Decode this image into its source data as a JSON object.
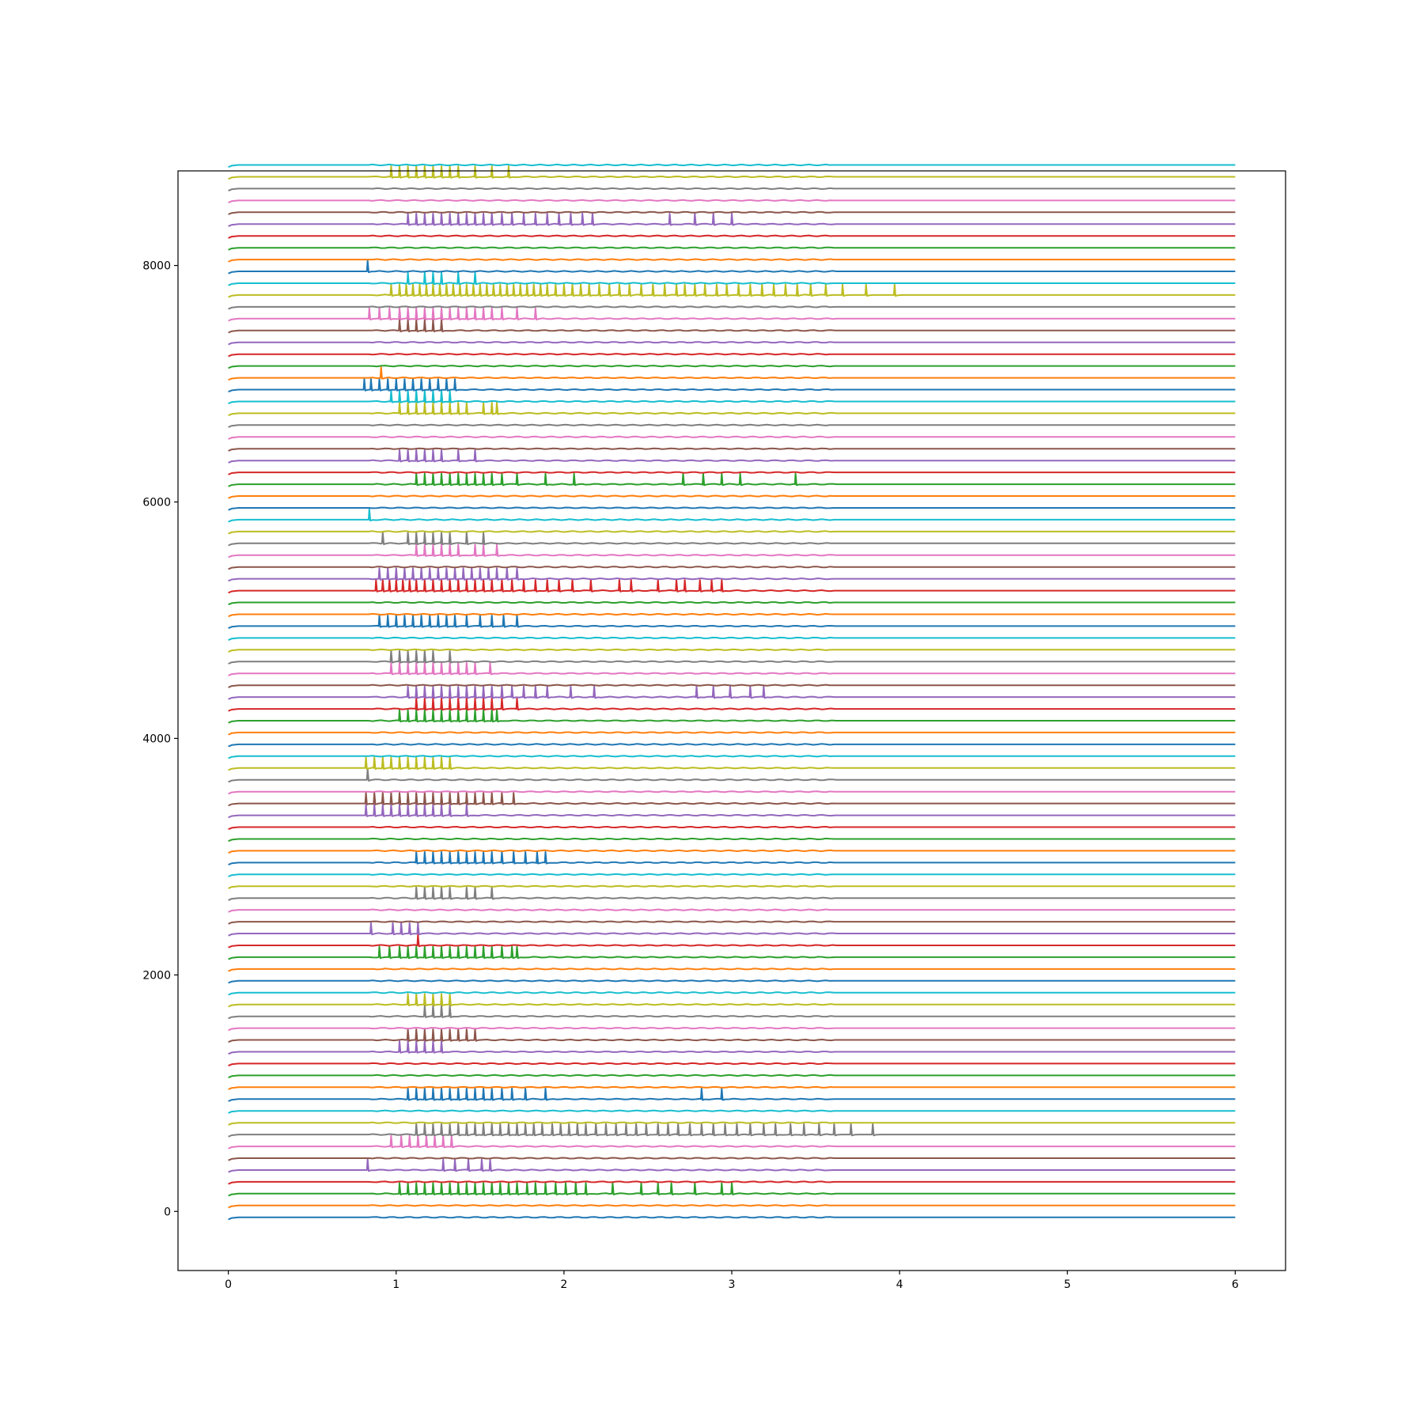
{
  "chart_data": {
    "type": "line",
    "title": "",
    "xlabel": "",
    "ylabel": "",
    "xlim": [
      -0.3,
      6.3
    ],
    "ylim": [
      -500,
      8800
    ],
    "x_ticks": [
      0,
      1,
      2,
      3,
      4,
      5,
      6
    ],
    "y_ticks": [
      0,
      2000,
      4000,
      6000,
      8000
    ],
    "x_tick_labels": [
      "0",
      "1",
      "2",
      "3",
      "4",
      "5",
      "6"
    ],
    "y_tick_labels": [
      "0",
      "2000",
      "4000",
      "6000",
      "8000"
    ],
    "grid": false,
    "legend": "none",
    "x_range": [
      0,
      6
    ],
    "colors": [
      "#1f77b4",
      "#ff7f0e",
      "#2ca02c",
      "#d62728",
      "#9467bd",
      "#8c564b",
      "#e377c2",
      "#7f7f7f",
      "#bcbd22",
      "#17becf"
    ],
    "series": [
      {
        "baseline": -50,
        "spikes": []
      },
      {
        "baseline": 50,
        "spikes": []
      },
      {
        "baseline": 150,
        "spikes": [
          1.02,
          1.07,
          1.12,
          1.17,
          1.22,
          1.27,
          1.32,
          1.37,
          1.42,
          1.47,
          1.52,
          1.57,
          1.62,
          1.67,
          1.72,
          1.78,
          1.83,
          1.89,
          1.95,
          2.01,
          2.07,
          2.13,
          2.29,
          2.46,
          2.56,
          2.64,
          2.78,
          2.94,
          3.0
        ]
      },
      {
        "baseline": 250,
        "spikes": []
      },
      {
        "baseline": 350,
        "spikes": [
          0.83,
          1.28,
          1.35,
          1.43,
          1.51,
          1.56
        ]
      },
      {
        "baseline": 450,
        "spikes": []
      },
      {
        "baseline": 550,
        "spikes": [
          0.97,
          1.03,
          1.08,
          1.13,
          1.18,
          1.23,
          1.28,
          1.33
        ]
      },
      {
        "baseline": 650,
        "spikes": [
          1.12,
          1.17,
          1.22,
          1.27,
          1.32,
          1.37,
          1.42,
          1.47,
          1.52,
          1.57,
          1.62,
          1.67,
          1.72,
          1.77,
          1.82,
          1.87,
          1.93,
          1.98,
          2.03,
          2.08,
          2.13,
          2.19,
          2.25,
          2.31,
          2.37,
          2.43,
          2.49,
          2.56,
          2.62,
          2.68,
          2.75,
          2.82,
          2.89,
          2.96,
          3.03,
          3.11,
          3.19,
          3.26,
          3.35,
          3.43,
          3.52,
          3.61,
          3.71,
          3.84
        ]
      },
      {
        "baseline": 750,
        "spikes": []
      },
      {
        "baseline": 850,
        "spikes": []
      },
      {
        "baseline": 950,
        "spikes": [
          1.07,
          1.12,
          1.17,
          1.22,
          1.27,
          1.32,
          1.37,
          1.42,
          1.47,
          1.52,
          1.57,
          1.63,
          1.69,
          1.77,
          1.89,
          2.82,
          2.94
        ]
      },
      {
        "baseline": 1050,
        "spikes": []
      },
      {
        "baseline": 1150,
        "spikes": []
      },
      {
        "baseline": 1250,
        "spikes": []
      },
      {
        "baseline": 1350,
        "spikes": [
          1.02,
          1.07,
          1.12,
          1.17,
          1.22,
          1.27
        ]
      },
      {
        "baseline": 1450,
        "spikes": [
          1.07,
          1.12,
          1.17,
          1.22,
          1.27,
          1.32,
          1.37,
          1.42,
          1.47
        ]
      },
      {
        "baseline": 1550,
        "spikes": []
      },
      {
        "baseline": 1650,
        "spikes": [
          1.17,
          1.22,
          1.27,
          1.32
        ]
      },
      {
        "baseline": 1750,
        "spikes": [
          1.07,
          1.12,
          1.17,
          1.22,
          1.27,
          1.32
        ]
      },
      {
        "baseline": 1850,
        "spikes": []
      },
      {
        "baseline": 1950,
        "spikes": []
      },
      {
        "baseline": 2050,
        "spikes": []
      },
      {
        "baseline": 2150,
        "spikes": [
          0.9,
          0.96,
          1.02,
          1.07,
          1.12,
          1.17,
          1.22,
          1.27,
          1.32,
          1.37,
          1.42,
          1.47,
          1.52,
          1.57,
          1.63,
          1.69,
          1.72
        ]
      },
      {
        "baseline": 2250,
        "spikes": [
          1.13
        ]
      },
      {
        "baseline": 2350,
        "spikes": [
          0.85,
          0.98,
          1.03,
          1.08,
          1.13
        ]
      },
      {
        "baseline": 2450,
        "spikes": []
      },
      {
        "baseline": 2550,
        "spikes": []
      },
      {
        "baseline": 2650,
        "spikes": [
          1.12,
          1.17,
          1.22,
          1.27,
          1.32,
          1.42,
          1.47,
          1.57
        ]
      },
      {
        "baseline": 2750,
        "spikes": []
      },
      {
        "baseline": 2850,
        "spikes": []
      },
      {
        "baseline": 2950,
        "spikes": [
          1.12,
          1.17,
          1.22,
          1.27,
          1.32,
          1.37,
          1.42,
          1.47,
          1.52,
          1.57,
          1.63,
          1.7,
          1.77,
          1.84,
          1.89
        ]
      },
      {
        "baseline": 3050,
        "spikes": []
      },
      {
        "baseline": 3150,
        "spikes": []
      },
      {
        "baseline": 3250,
        "spikes": []
      },
      {
        "baseline": 3350,
        "spikes": [
          0.82,
          0.87,
          0.92,
          0.97,
          1.02,
          1.07,
          1.12,
          1.17,
          1.22,
          1.27,
          1.32,
          1.42
        ]
      },
      {
        "baseline": 3450,
        "spikes": [
          0.82,
          0.87,
          0.92,
          0.97,
          1.02,
          1.07,
          1.12,
          1.17,
          1.22,
          1.27,
          1.32,
          1.37,
          1.42,
          1.47,
          1.52,
          1.57,
          1.63,
          1.7
        ]
      },
      {
        "baseline": 3550,
        "spikes": []
      },
      {
        "baseline": 3650,
        "spikes": [
          0.83
        ]
      },
      {
        "baseline": 3750,
        "spikes": [
          0.82,
          0.87,
          0.92,
          0.97,
          1.02,
          1.07,
          1.12,
          1.17,
          1.22,
          1.27,
          1.32
        ]
      },
      {
        "baseline": 3850,
        "spikes": []
      },
      {
        "baseline": 3950,
        "spikes": []
      },
      {
        "baseline": 4050,
        "spikes": []
      },
      {
        "baseline": 4150,
        "spikes": [
          1.02,
          1.07,
          1.12,
          1.17,
          1.22,
          1.27,
          1.32,
          1.37,
          1.42,
          1.47,
          1.52,
          1.57,
          1.6
        ]
      },
      {
        "baseline": 4250,
        "spikes": [
          1.12,
          1.17,
          1.22,
          1.27,
          1.32,
          1.37,
          1.42,
          1.47,
          1.52,
          1.57,
          1.63,
          1.72
        ]
      },
      {
        "baseline": 4350,
        "spikes": [
          1.07,
          1.12,
          1.17,
          1.22,
          1.27,
          1.32,
          1.37,
          1.42,
          1.47,
          1.52,
          1.57,
          1.63,
          1.69,
          1.76,
          1.83,
          1.9,
          2.04,
          2.18,
          2.79,
          2.89,
          2.99,
          3.11,
          3.19
        ]
      },
      {
        "baseline": 4450,
        "spikes": []
      },
      {
        "baseline": 4550,
        "spikes": [
          0.97,
          1.02,
          1.07,
          1.12,
          1.17,
          1.22,
          1.27,
          1.32,
          1.37,
          1.42,
          1.47,
          1.56
        ]
      },
      {
        "baseline": 4650,
        "spikes": [
          0.97,
          1.02,
          1.07,
          1.12,
          1.17,
          1.22,
          1.32
        ]
      },
      {
        "baseline": 4750,
        "spikes": []
      },
      {
        "baseline": 4850,
        "spikes": []
      },
      {
        "baseline": 4950,
        "spikes": [
          0.9,
          0.95,
          1.0,
          1.05,
          1.1,
          1.15,
          1.2,
          1.25,
          1.3,
          1.35,
          1.42,
          1.5,
          1.57,
          1.64,
          1.72
        ]
      },
      {
        "baseline": 5050,
        "spikes": []
      },
      {
        "baseline": 5150,
        "spikes": []
      },
      {
        "baseline": 5250,
        "spikes": [
          0.88,
          0.92,
          0.96,
          1.0,
          1.04,
          1.08,
          1.12,
          1.17,
          1.22,
          1.27,
          1.32,
          1.37,
          1.42,
          1.47,
          1.52,
          1.57,
          1.63,
          1.69,
          1.76,
          1.83,
          1.9,
          1.97,
          2.05,
          2.16,
          2.33,
          2.4,
          2.56,
          2.67,
          2.72,
          2.81,
          2.88,
          2.94
        ]
      },
      {
        "baseline": 5350,
        "spikes": [
          0.9,
          0.95,
          1.0,
          1.05,
          1.1,
          1.15,
          1.2,
          1.25,
          1.3,
          1.35,
          1.4,
          1.45,
          1.5,
          1.55,
          1.6,
          1.66,
          1.72
        ]
      },
      {
        "baseline": 5450,
        "spikes": []
      },
      {
        "baseline": 5550,
        "spikes": [
          1.12,
          1.17,
          1.22,
          1.27,
          1.32,
          1.37,
          1.47,
          1.52,
          1.6
        ]
      },
      {
        "baseline": 5650,
        "spikes": [
          0.92,
          1.07,
          1.12,
          1.17,
          1.22,
          1.27,
          1.32,
          1.42,
          1.52
        ]
      },
      {
        "baseline": 5750,
        "spikes": []
      },
      {
        "baseline": 5850,
        "spikes": [
          0.84
        ]
      },
      {
        "baseline": 5950,
        "spikes": []
      },
      {
        "baseline": 6050,
        "spikes": []
      },
      {
        "baseline": 6150,
        "spikes": [
          1.12,
          1.17,
          1.22,
          1.27,
          1.32,
          1.37,
          1.42,
          1.47,
          1.52,
          1.57,
          1.63,
          1.72,
          1.89,
          2.06,
          2.71,
          2.83,
          2.94,
          3.05,
          3.38
        ]
      },
      {
        "baseline": 6250,
        "spikes": []
      },
      {
        "baseline": 6350,
        "spikes": [
          1.02,
          1.07,
          1.12,
          1.17,
          1.22,
          1.27,
          1.37,
          1.47
        ]
      },
      {
        "baseline": 6450,
        "spikes": []
      },
      {
        "baseline": 6550,
        "spikes": []
      },
      {
        "baseline": 6650,
        "spikes": []
      },
      {
        "baseline": 6750,
        "spikes": [
          1.02,
          1.07,
          1.12,
          1.17,
          1.22,
          1.27,
          1.32,
          1.37,
          1.42,
          1.52,
          1.57,
          1.6
        ]
      },
      {
        "baseline": 6850,
        "spikes": [
          0.97,
          1.02,
          1.07,
          1.12,
          1.17,
          1.22,
          1.27,
          1.32
        ]
      },
      {
        "baseline": 6950,
        "spikes": [
          0.81,
          0.85,
          0.9,
          0.95,
          1.0,
          1.05,
          1.1,
          1.15,
          1.2,
          1.25,
          1.3,
          1.35
        ]
      },
      {
        "baseline": 7050,
        "spikes": [
          0.91
        ]
      },
      {
        "baseline": 7150,
        "spikes": []
      },
      {
        "baseline": 7250,
        "spikes": []
      },
      {
        "baseline": 7350,
        "spikes": []
      },
      {
        "baseline": 7450,
        "spikes": [
          1.02,
          1.07,
          1.12,
          1.17,
          1.22,
          1.27
        ]
      },
      {
        "baseline": 7550,
        "spikes": [
          0.84,
          0.9,
          0.96,
          1.02,
          1.07,
          1.12,
          1.17,
          1.22,
          1.27,
          1.32,
          1.37,
          1.42,
          1.47,
          1.52,
          1.57,
          1.63,
          1.72,
          1.83
        ]
      },
      {
        "baseline": 7650,
        "spikes": []
      },
      {
        "baseline": 7750,
        "spikes": [
          0.97,
          1.02,
          1.06,
          1.1,
          1.14,
          1.18,
          1.22,
          1.26,
          1.3,
          1.34,
          1.38,
          1.42,
          1.46,
          1.5,
          1.54,
          1.58,
          1.62,
          1.66,
          1.7,
          1.74,
          1.78,
          1.82,
          1.86,
          1.9,
          1.95,
          2.0,
          2.05,
          2.1,
          2.15,
          2.21,
          2.27,
          2.33,
          2.39,
          2.46,
          2.53,
          2.6,
          2.67,
          2.72,
          2.78,
          2.84,
          2.91,
          2.97,
          3.04,
          3.11,
          3.18,
          3.25,
          3.32,
          3.39,
          3.47,
          3.56,
          3.66,
          3.8,
          3.97
        ]
      },
      {
        "baseline": 7850,
        "spikes": [
          1.07,
          1.17,
          1.22,
          1.27,
          1.37,
          1.47
        ]
      },
      {
        "baseline": 7950,
        "spikes": [
          0.83
        ]
      },
      {
        "baseline": 8050,
        "spikes": []
      },
      {
        "baseline": 8150,
        "spikes": []
      },
      {
        "baseline": 8250,
        "spikes": []
      },
      {
        "baseline": 8350,
        "spikes": [
          1.07,
          1.12,
          1.17,
          1.22,
          1.27,
          1.32,
          1.37,
          1.42,
          1.47,
          1.52,
          1.57,
          1.63,
          1.69,
          1.76,
          1.83,
          1.9,
          1.97,
          2.04,
          2.11,
          2.17,
          2.63,
          2.78,
          2.89,
          3.0
        ]
      },
      {
        "baseline": 8450,
        "spikes": []
      },
      {
        "baseline": 8550,
        "spikes": []
      },
      {
        "baseline": 8650,
        "spikes": []
      },
      {
        "baseline": 8750,
        "spikes": [
          0.97,
          1.02,
          1.07,
          1.12,
          1.17,
          1.22,
          1.27,
          1.32,
          1.37,
          1.47,
          1.57,
          1.67
        ]
      },
      {
        "baseline": 8850,
        "spikes": []
      }
    ]
  }
}
